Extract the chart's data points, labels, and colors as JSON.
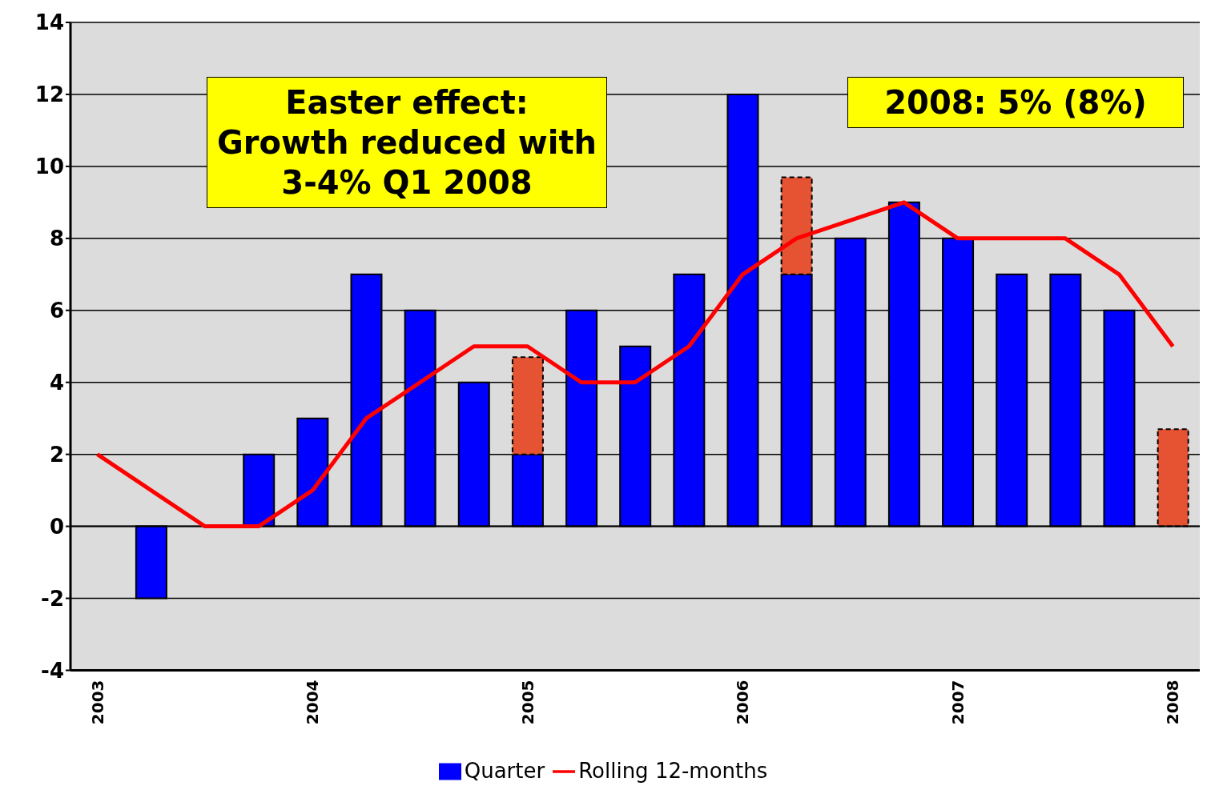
{
  "chart_data": {
    "type": "bar",
    "categories": [
      "2003",
      null,
      null,
      null,
      "2004",
      null,
      null,
      null,
      "2005",
      null,
      null,
      null,
      "2006",
      null,
      null,
      null,
      "2007",
      null,
      null,
      null,
      "2008"
    ],
    "stacked": true,
    "series": [
      {
        "name": "Quarter",
        "color": "#0000ff",
        "values": [
          null,
          -2,
          0,
          2,
          3,
          7,
          6,
          4,
          2,
          6,
          5,
          7,
          12,
          7,
          8,
          9,
          8,
          7,
          7,
          6,
          0
        ]
      },
      {
        "color": "#e65332",
        "line_style": "dashed",
        "values": [
          null,
          null,
          null,
          null,
          null,
          null,
          null,
          null,
          2.7,
          null,
          null,
          null,
          null,
          2.7,
          null,
          null,
          null,
          null,
          null,
          null,
          2.7
        ]
      },
      {
        "name": "Rolling 12-months",
        "type": "line",
        "color": "#ff0000",
        "values": [
          2,
          1,
          0,
          0,
          1,
          3,
          4,
          5,
          5,
          4,
          4,
          5,
          7,
          8,
          8.5,
          9,
          8,
          8,
          8,
          7,
          5
        ]
      }
    ],
    "ylim": [
      -4,
      14
    ],
    "yticks": [
      -4,
      -2,
      0,
      2,
      4,
      6,
      8,
      10,
      12,
      14
    ],
    "grid": "y",
    "legend": "bottom",
    "marker": "none",
    "annotations": [
      "Easter effect: Growth reduced with 3-4% Q1 2008",
      "2008: 5% (8%)"
    ]
  }
}
